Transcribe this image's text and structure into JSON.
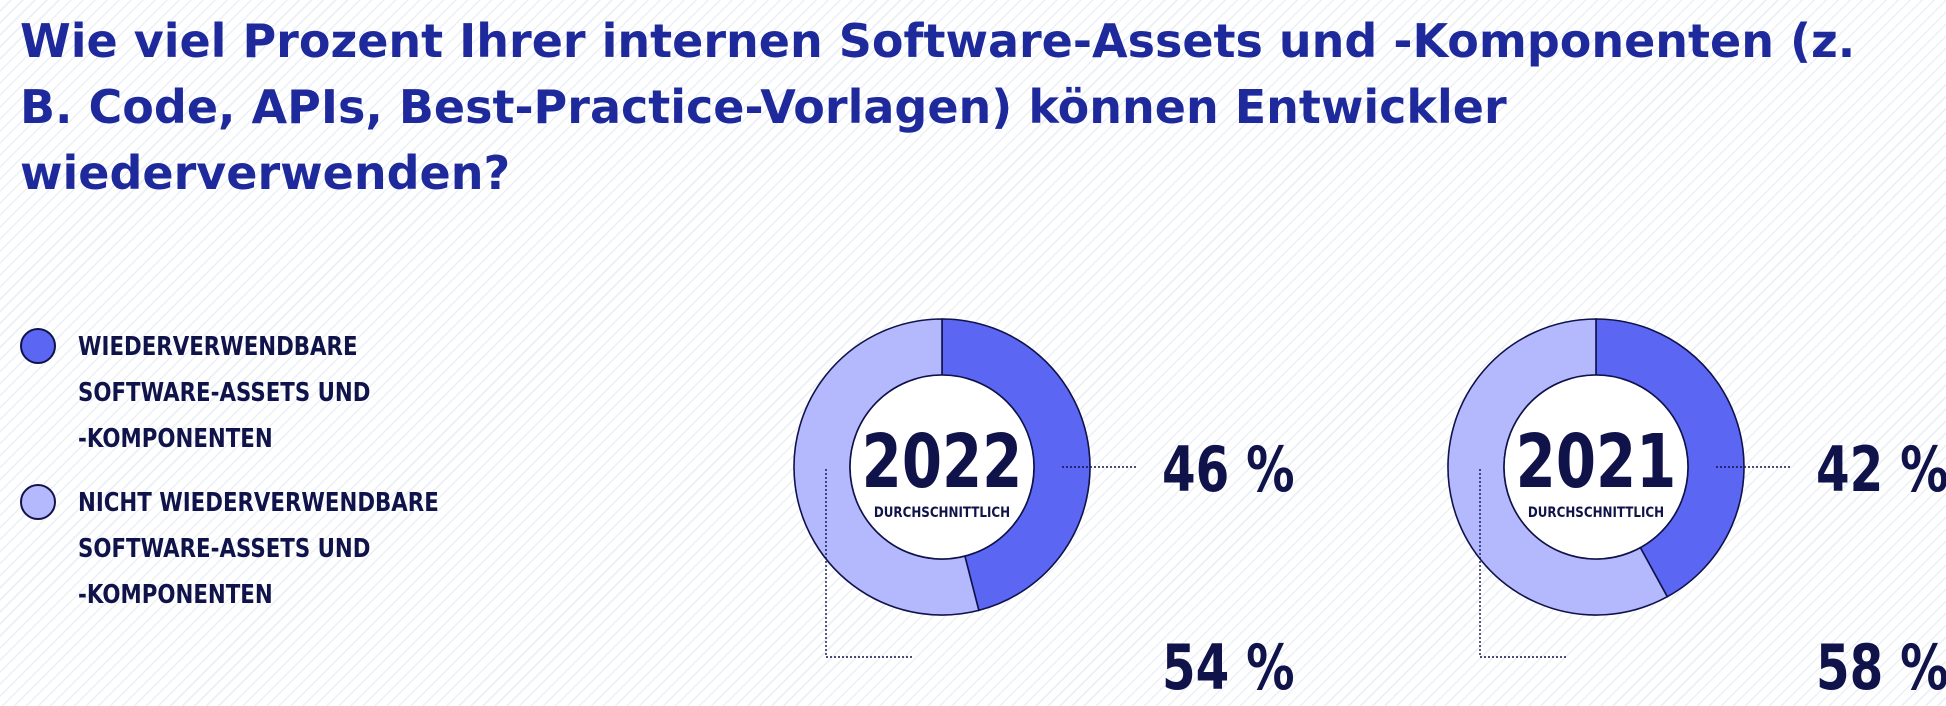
{
  "title": "Wie viel Prozent Ihrer internen Software-Assets und -Komponenten (z. B. Code, APIs, Best-Practice-Vorlagen) können Entwickler wiederverwenden?",
  "colors": {
    "reusable": "#5b67f3",
    "not_reusable": "#b3b9fc",
    "outline": "#10124a",
    "title": "#1e2a9c"
  },
  "legend": [
    {
      "lines": [
        "WIEDERVERWENDBARE",
        "SOFTWARE-ASSETS UND",
        "-KOMPONENTEN"
      ],
      "color": "#5b67f3"
    },
    {
      "lines": [
        "NICHT WIEDERVERWENDBARE",
        "SOFTWARE-ASSETS UND",
        "-KOMPONENTEN"
      ],
      "color": "#b3b9fc"
    }
  ],
  "chart_data": [
    {
      "type": "pie",
      "title": "2022",
      "center_label": "2022",
      "center_sublabel": "DURCHSCHNITTLICH",
      "slices": [
        {
          "label": "WIEDERVERWENDBARE SOFTWARE-ASSETS UND -KOMPONENTEN",
          "value": 46,
          "display": "46 %"
        },
        {
          "label": "NICHT WIEDERVERWENDBARE SOFTWARE-ASSETS UND -KOMPONENTEN",
          "value": 54,
          "display": "54 %"
        }
      ]
    },
    {
      "type": "pie",
      "title": "2021",
      "center_label": "2021",
      "center_sublabel": "DURCHSCHNITTLICH",
      "slices": [
        {
          "label": "WIEDERVERWENDBARE SOFTWARE-ASSETS UND -KOMPONENTEN",
          "value": 42,
          "display": "42 %"
        },
        {
          "label": "NICHT WIEDERVERWENDBARE SOFTWARE-ASSETS UND -KOMPONENTEN",
          "value": 58,
          "display": "58 %"
        }
      ]
    }
  ]
}
